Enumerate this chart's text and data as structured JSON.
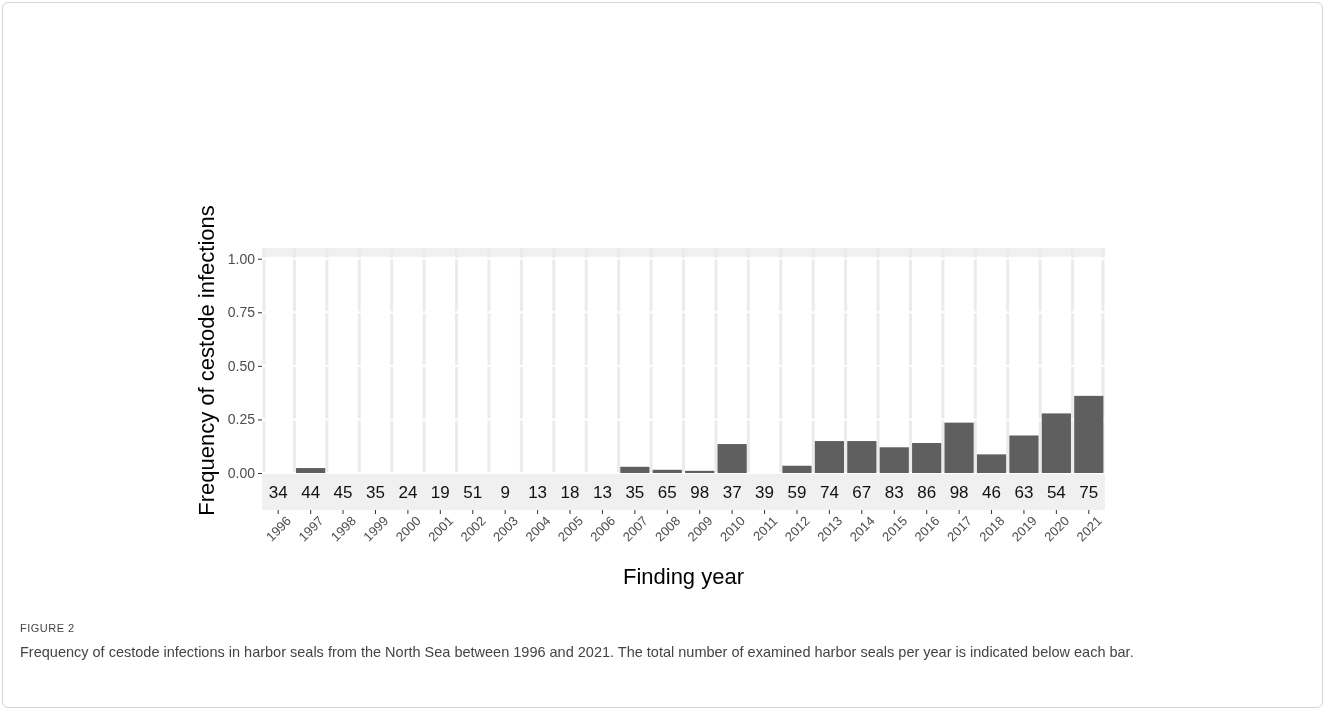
{
  "chart_data": {
    "type": "bar",
    "xlabel": "Finding year",
    "ylabel": "Frequency of cestode infections",
    "categories": [
      "1996",
      "1997",
      "1998",
      "1999",
      "2000",
      "2001",
      "2002",
      "2003",
      "2004",
      "2005",
      "2006",
      "2007",
      "2008",
      "2009",
      "2010",
      "2011",
      "2012",
      "2013",
      "2014",
      "2015",
      "2016",
      "2017",
      "2018",
      "2019",
      "2020",
      "2021"
    ],
    "values": [
      0,
      0.023,
      0,
      0,
      0,
      0,
      0,
      0,
      0,
      0,
      0,
      0.029,
      0.015,
      0.01,
      0.135,
      0,
      0.034,
      0.149,
      0.149,
      0.12,
      0.14,
      0.235,
      0.087,
      0.175,
      0.278,
      0.36
    ],
    "color": "#5f5f5f",
    "ylim": [
      0,
      1.05
    ],
    "yticks": [
      {
        "value": 0,
        "label": "0.00"
      },
      {
        "value": 0.25,
        "label": "0.25"
      },
      {
        "value": 0.5,
        "label": "0.50"
      },
      {
        "value": 0.75,
        "label": "0.75"
      },
      {
        "value": 1,
        "label": "1.00"
      }
    ],
    "grid": true,
    "annotations": [
      {
        "text": "34",
        "x": "1996"
      },
      {
        "text": "44",
        "x": "1997"
      },
      {
        "text": "45",
        "x": "1998"
      },
      {
        "text": "35",
        "x": "1999"
      },
      {
        "text": "24",
        "x": "2000"
      },
      {
        "text": "19",
        "x": "2001"
      },
      {
        "text": "51",
        "x": "2002"
      },
      {
        "text": "9",
        "x": "2003"
      },
      {
        "text": "13",
        "x": "2004"
      },
      {
        "text": "18",
        "x": "2005"
      },
      {
        "text": "13",
        "x": "2006"
      },
      {
        "text": "35",
        "x": "2007"
      },
      {
        "text": "65",
        "x": "2008"
      },
      {
        "text": "98",
        "x": "2009"
      },
      {
        "text": "37",
        "x": "2010"
      },
      {
        "text": "39",
        "x": "2011"
      },
      {
        "text": "59",
        "x": "2012"
      },
      {
        "text": "74",
        "x": "2013"
      },
      {
        "text": "67",
        "x": "2014"
      },
      {
        "text": "83",
        "x": "2015"
      },
      {
        "text": "86",
        "x": "2016"
      },
      {
        "text": "98",
        "x": "2017"
      },
      {
        "text": "46",
        "x": "2018"
      },
      {
        "text": "63",
        "x": "2019"
      },
      {
        "text": "54",
        "x": "2020"
      },
      {
        "text": "75",
        "x": "2021"
      },
      "FIGURE 2",
      "Frequency of cestode infections in harbor seals from the North Sea between 1996 and 2021. The total number of examined harbor seals per year is indicated below each bar."
    ]
  }
}
